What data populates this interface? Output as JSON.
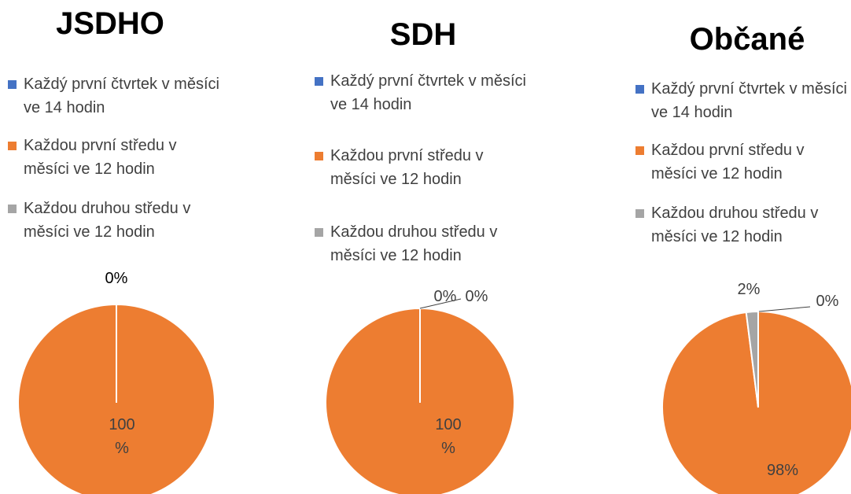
{
  "chart_data": [
    {
      "type": "pie",
      "title": "JSDHO",
      "categories": [
        "Každý první čtvrtek v měsíci ve 14 hodin",
        "Každou první středu v měsíci ve 12 hodin",
        "Každou druhou středu v měsíci ve 12 hodin"
      ],
      "values": [
        0,
        100,
        0
      ],
      "value_labels": [
        "0%",
        "100 %",
        null
      ],
      "colors": [
        "#4472c4",
        "#ed7d31",
        "#a5a5a5"
      ]
    },
    {
      "type": "pie",
      "title": "SDH",
      "categories": [
        "Každý první čtvrtek v měsíci ve 14 hodin",
        "Každou první středu v měsíci ve 12 hodin",
        "Každou druhou středu v měsíci ve 12 hodin"
      ],
      "values": [
        0,
        100,
        0
      ],
      "value_labels": [
        "0%",
        "100 %",
        "0%"
      ],
      "colors": [
        "#4472c4",
        "#ed7d31",
        "#a5a5a5"
      ]
    },
    {
      "type": "pie",
      "title": "Občané",
      "categories": [
        "Každý první čtvrtek v měsíci ve 14 hodin",
        "Každou první středu v měsíci ve 12 hodin",
        "Každou druhou středu v měsíci ve 12 hodin"
      ],
      "values": [
        0,
        98,
        2
      ],
      "value_labels": [
        "0%",
        "98%",
        "2%"
      ],
      "colors": [
        "#4472c4",
        "#ed7d31",
        "#a5a5a5"
      ]
    }
  ]
}
